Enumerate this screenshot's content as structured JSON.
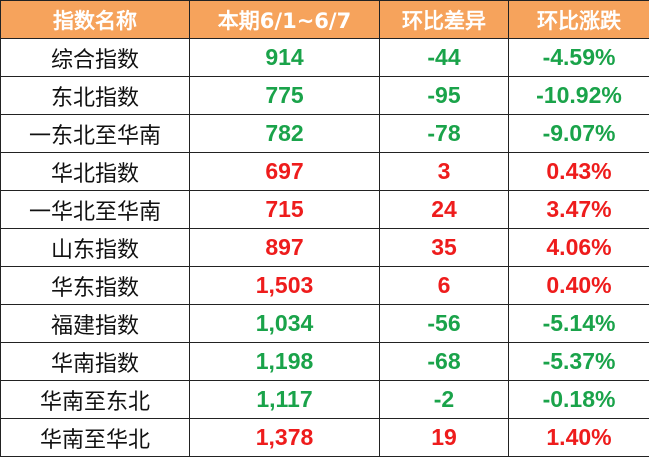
{
  "table": {
    "header": [
      "指数名称",
      "本期6/1~6/7",
      "环比差异",
      "环比涨跌"
    ],
    "header_color": "#f6a35c",
    "rows": [
      [
        "综合指数",
        "914",
        "-44",
        "-4.59%"
      ],
      [
        "东北指数",
        "775",
        "-95",
        "-10.92%"
      ],
      [
        "一东北至华南",
        "782",
        "-78",
        "-9.07%"
      ],
      [
        "华北指数",
        "697",
        "3",
        "0.43%"
      ],
      [
        "一华北至华南",
        "715",
        "24",
        "3.47%"
      ],
      [
        "山东指数",
        "897",
        "35",
        "4.06%"
      ],
      [
        "华东指数",
        "1,503",
        "6",
        "0.40%"
      ],
      [
        "福建指数",
        "1,034",
        "-56",
        "-5.14%"
      ],
      [
        "华南指数",
        "1,198",
        "-68",
        "-5.37%"
      ],
      [
        "华南至东北",
        "1,117",
        "-2",
        "-0.18%"
      ],
      [
        "华南至华北",
        "1,378",
        "19",
        "1.40%"
      ]
    ],
    "row_colors": [
      "#1aa34a",
      "#1aa34a",
      "#1aa34a",
      "#ee1c1c",
      "#ee1c1c",
      "#ee1c1c",
      "#ee1c1c",
      "#1aa34a",
      "#1aa34a",
      "#1aa34a",
      "#ee1c1c"
    ]
  }
}
